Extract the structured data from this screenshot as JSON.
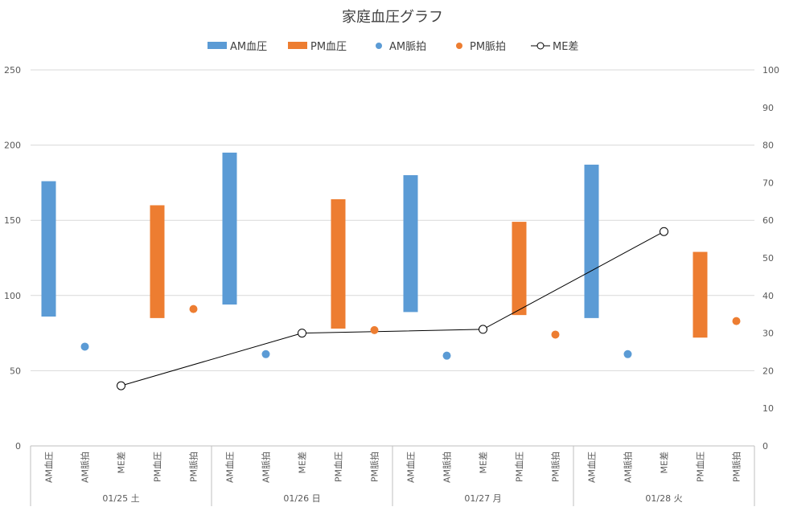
{
  "chart_data": {
    "type": "bar",
    "title": "家庭血圧グラフ",
    "legend": {
      "position": "top",
      "entries": [
        {
          "label": "AM血圧",
          "kind": "bar",
          "color": "#5B9BD5"
        },
        {
          "label": "PM血圧",
          "kind": "bar",
          "color": "#ED7D31"
        },
        {
          "label": "AM脈拍",
          "kind": "dot",
          "color": "#5B9BD5"
        },
        {
          "label": "PM脈拍",
          "kind": "dot",
          "color": "#ED7D31"
        },
        {
          "label": "ME差",
          "kind": "line-marker",
          "color": "#000000"
        }
      ]
    },
    "left_axis": {
      "range": [
        0,
        250
      ],
      "ticks": [
        0,
        50,
        100,
        150,
        200,
        250
      ]
    },
    "right_axis": {
      "range": [
        0,
        100
      ],
      "ticks": [
        0,
        10,
        20,
        30,
        40,
        50,
        60,
        70,
        80,
        90,
        100
      ]
    },
    "grid": true,
    "sub_categories": [
      "AM血圧",
      "AM脈拍",
      "ME差",
      "PM血圧",
      "PM脈拍"
    ],
    "groups": [
      {
        "label": "01/25 土",
        "am_bp": [
          86,
          176
        ],
        "pm_bp": [
          85,
          160
        ],
        "am_pulse": 66,
        "pm_pulse": 91,
        "me_diff": 16
      },
      {
        "label": "01/26 日",
        "am_bp": [
          94,
          195
        ],
        "pm_bp": [
          78,
          164
        ],
        "am_pulse": 61,
        "pm_pulse": 77,
        "me_diff": 30
      },
      {
        "label": "01/27 月",
        "am_bp": [
          89,
          180
        ],
        "pm_bp": [
          87,
          149
        ],
        "am_pulse": 60,
        "pm_pulse": 74,
        "me_diff": 31
      },
      {
        "label": "01/28 火",
        "am_bp": [
          85,
          187
        ],
        "pm_bp": [
          72,
          129
        ],
        "am_pulse": 61,
        "pm_pulse": 83,
        "me_diff": 57
      }
    ]
  }
}
